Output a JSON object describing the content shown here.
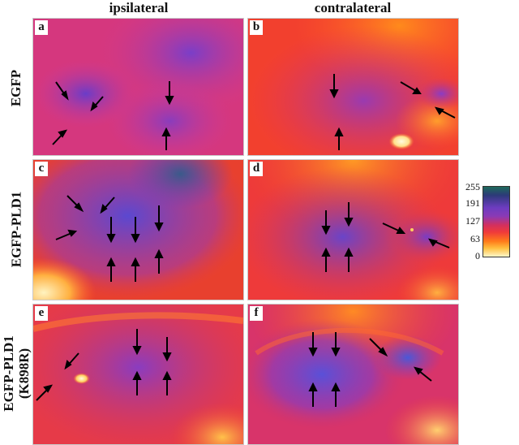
{
  "columns": [
    "ipsilateral",
    "contralateral"
  ],
  "rows": [
    "EGFP",
    "EGFP-PLD1",
    "EGFP-PLD1\n(K898R)"
  ],
  "panels": [
    "a",
    "b",
    "c",
    "d",
    "e",
    "f"
  ],
  "colorbar": {
    "ticks": [
      "255",
      "191",
      "127",
      "63",
      "0"
    ],
    "colors": [
      "#1e6a5b",
      "#2c3a78",
      "#6d3cc0",
      "#8a3ab6",
      "#d3305e",
      "#f03a3a",
      "#ff7b1a",
      "#ffc040",
      "#fff6c8"
    ]
  }
}
